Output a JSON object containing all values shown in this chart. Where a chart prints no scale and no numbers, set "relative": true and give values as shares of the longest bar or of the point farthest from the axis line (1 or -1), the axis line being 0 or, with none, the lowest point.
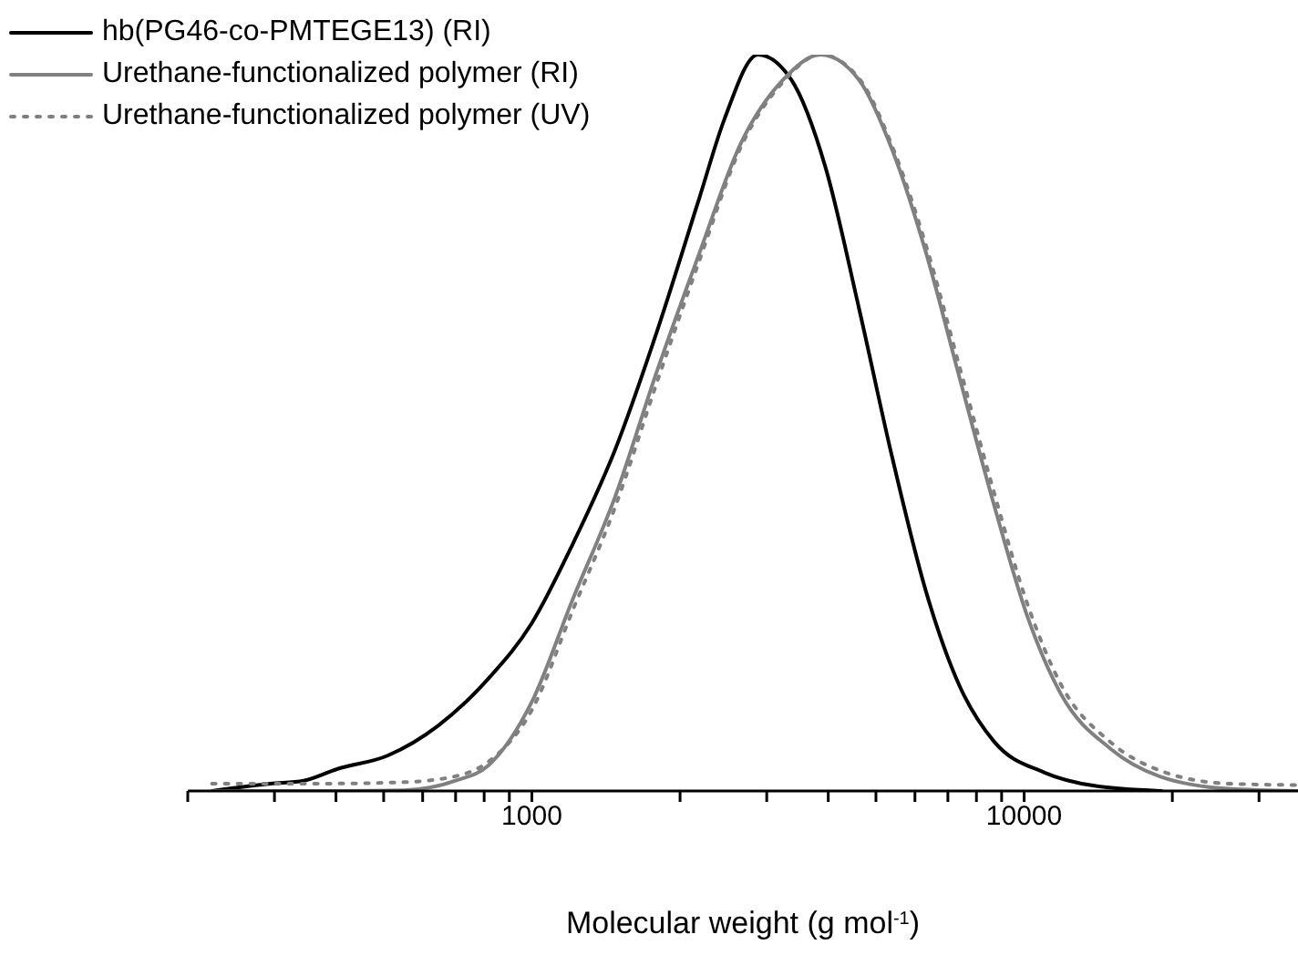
{
  "chart_data": {
    "type": "line",
    "relative": true,
    "xlabel": "Molecular weight (g mol$^{-1}$)",
    "log": "x",
    "xlim": [
      200,
      36000
    ],
    "xticks": [
      {
        "value": 200,
        "label": null
      },
      {
        "value": 300,
        "label": null
      },
      {
        "value": 400,
        "label": null
      },
      {
        "value": 500,
        "label": null
      },
      {
        "value": 600,
        "label": null
      },
      {
        "value": 700,
        "label": null
      },
      {
        "value": 800,
        "label": null
      },
      {
        "value": 900,
        "label": null
      },
      1000,
      {
        "value": 2000,
        "label": null
      },
      {
        "value": 3000,
        "label": null
      },
      {
        "value": 4000,
        "label": null
      },
      {
        "value": 5000,
        "label": null
      },
      {
        "value": 6000,
        "label": null
      },
      {
        "value": 7000,
        "label": null
      },
      {
        "value": 8000,
        "label": null
      },
      {
        "value": 9000,
        "label": null
      },
      10000,
      {
        "value": 20000,
        "label": null
      },
      {
        "value": 30000,
        "label": null
      }
    ],
    "legend": "top left",
    "marker": "none",
    "series": [
      {
        "name": "hb(PG46-co-PMTEGE13) (RI)",
        "color": "#000000",
        "line_style": "solid",
        "x": [
          224,
          294,
          344,
          403,
          509,
          646,
          817,
          1000,
          1210,
          1475,
          1795,
          2188,
          2460,
          2880,
          3365,
          3945,
          4617,
          5400,
          6325,
          7400,
          8690,
          11000,
          13900,
          19000
        ],
        "values": [
          0,
          0.01,
          0.014,
          0.03,
          0.048,
          0.089,
          0.153,
          0.228,
          0.335,
          0.463,
          0.624,
          0.805,
          0.912,
          1,
          0.966,
          0.848,
          0.656,
          0.452,
          0.27,
          0.142,
          0.067,
          0.025,
          0.007,
          0
        ]
      },
      {
        "name": "Urethane-functionalized polymer (RI)",
        "color": "#808080",
        "line_style": "solid",
        "x": [
          224,
          400,
          550,
          700,
          817,
          1000,
          1210,
          1475,
          1795,
          2188,
          2660,
          3240,
          3860,
          4617,
          5400,
          6325,
          7400,
          8690,
          10140,
          11870,
          15000,
          19000,
          26000,
          36000
        ],
        "values": [
          0,
          0,
          0.001,
          0.014,
          0.035,
          0.121,
          0.26,
          0.399,
          0.57,
          0.73,
          0.88,
          0.966,
          1,
          0.966,
          0.87,
          0.73,
          0.56,
          0.388,
          0.238,
          0.132,
          0.057,
          0.019,
          0.003,
          0
        ]
      },
      {
        "name": "Urethane-functionalized polymer (UV)",
        "color": "#808080",
        "line_style": "dotted",
        "x": [
          224,
          375,
          550,
          700,
          817,
          1000,
          1210,
          1475,
          1795,
          2188,
          2660,
          3240,
          3860,
          4617,
          5400,
          6325,
          7400,
          8690,
          10140,
          11870,
          15000,
          19000,
          26000,
          36000
        ],
        "values": [
          0.01,
          0.01,
          0.012,
          0.02,
          0.04,
          0.11,
          0.245,
          0.385,
          0.555,
          0.72,
          0.875,
          0.963,
          1,
          0.968,
          0.875,
          0.74,
          0.575,
          0.405,
          0.255,
          0.145,
          0.066,
          0.027,
          0.01,
          0.008
        ]
      }
    ]
  }
}
